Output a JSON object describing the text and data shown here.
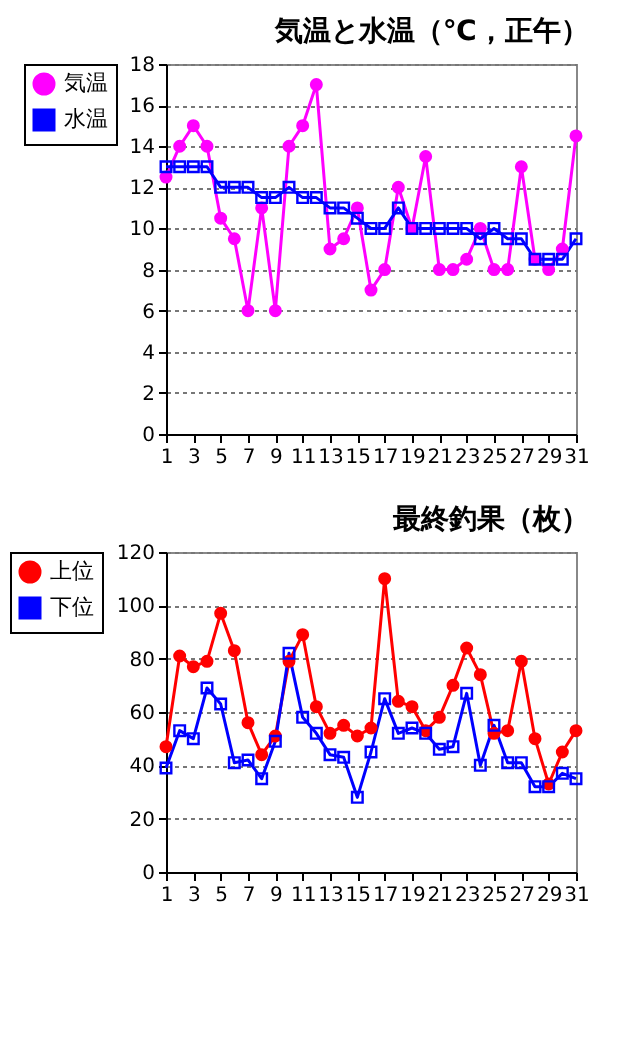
{
  "chart_data": [
    {
      "type": "line",
      "title": "気温と水温（℃，正午）",
      "x": [
        1,
        2,
        3,
        4,
        5,
        6,
        7,
        8,
        9,
        10,
        11,
        12,
        13,
        14,
        15,
        16,
        17,
        18,
        19,
        20,
        21,
        22,
        23,
        24,
        25,
        26,
        27,
        28,
        29,
        30,
        31
      ],
      "series": [
        {
          "name": "気温",
          "color": "#ff00ff",
          "marker": "circle",
          "values": [
            12.5,
            14,
            15,
            14,
            10.5,
            9.5,
            6,
            11,
            6,
            14,
            15,
            17,
            9,
            9.5,
            11,
            7,
            8,
            12,
            10,
            13.5,
            8,
            8,
            8.5,
            10,
            8,
            8,
            13,
            8.5,
            8,
            9,
            14.5
          ]
        },
        {
          "name": "水温",
          "color": "#0000ff",
          "marker": "square",
          "values": [
            13,
            13,
            13,
            13,
            12,
            12,
            12,
            11.5,
            11.5,
            12,
            11.5,
            11.5,
            11,
            11,
            10.5,
            10,
            10,
            11,
            10,
            10,
            10,
            10,
            10,
            9.5,
            10,
            9.5,
            9.5,
            8.5,
            8.5,
            8.5,
            9.5
          ]
        }
      ],
      "xlim": [
        1,
        31
      ],
      "xticks": [
        1,
        3,
        5,
        7,
        9,
        11,
        13,
        15,
        17,
        19,
        21,
        23,
        25,
        27,
        29,
        31
      ],
      "ylim": [
        0,
        18
      ],
      "yticks": [
        0,
        2,
        4,
        6,
        8,
        10,
        12,
        14,
        16,
        18
      ],
      "grid": "y",
      "legend": "left"
    },
    {
      "type": "line",
      "title": "最終釣果（枚）",
      "x": [
        1,
        2,
        3,
        4,
        5,
        6,
        7,
        8,
        9,
        10,
        11,
        12,
        13,
        14,
        15,
        16,
        17,
        18,
        19,
        20,
        21,
        22,
        23,
        24,
        25,
        26,
        27,
        28,
        29,
        30,
        31
      ],
      "series": [
        {
          "name": "上位",
          "color": "#ff0000",
          "marker": "circle",
          "values": [
            47,
            81,
            77,
            79,
            97,
            83,
            56,
            44,
            51,
            79,
            89,
            62,
            52,
            55,
            51,
            54,
            110,
            64,
            62,
            53,
            58,
            70,
            84,
            74,
            52,
            53,
            79,
            50,
            33,
            45,
            53
          ]
        },
        {
          "name": "下位",
          "color": "#0000ff",
          "marker": "square",
          "values": [
            39,
            53,
            50,
            69,
            63,
            41,
            42,
            35,
            49,
            82,
            58,
            52,
            44,
            43,
            28,
            45,
            65,
            52,
            54,
            52,
            46,
            47,
            67,
            40,
            55,
            41,
            41,
            32,
            32,
            37,
            35
          ]
        }
      ],
      "xlim": [
        1,
        31
      ],
      "xticks": [
        1,
        3,
        5,
        7,
        9,
        11,
        13,
        15,
        17,
        19,
        21,
        23,
        25,
        27,
        29,
        31
      ],
      "ylim": [
        0,
        120
      ],
      "yticks": [
        0,
        20,
        40,
        60,
        80,
        100,
        120
      ],
      "grid": "y",
      "legend": "left"
    }
  ]
}
